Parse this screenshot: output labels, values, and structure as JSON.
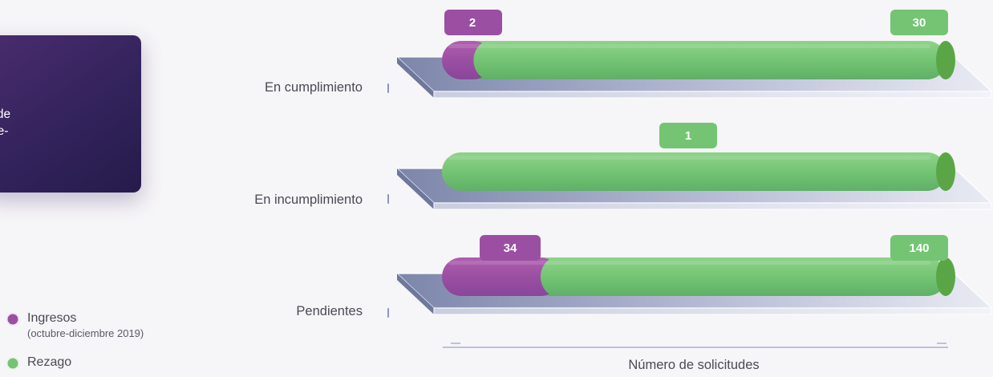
{
  "title": "umentales de\nnes, octubre-",
  "chart_data": {
    "type": "bar",
    "orientation": "horizontal",
    "stacked": true,
    "categories": [
      "En cumplimiento",
      "En incumplimiento",
      "Pendientes"
    ],
    "series": [
      {
        "name": "Ingresos",
        "name_detail": "(octubre-diciembre 2019)",
        "color": "#9b4fa3",
        "values": [
          2,
          0,
          34
        ]
      },
      {
        "name": "Rezago",
        "color": "#74c474",
        "values": [
          30,
          1,
          140
        ]
      }
    ],
    "data_labels": [
      {
        "ingresos": "2",
        "rezago": "30"
      },
      {
        "ingresos": "",
        "rezago": "1"
      },
      {
        "ingresos": "34",
        "rezago": "140"
      }
    ],
    "xlabel": "Número de solicitudes",
    "legend_position": "bottom-left"
  },
  "legend": {
    "items": [
      {
        "label": "Ingresos",
        "sublabel": "(octubre-diciembre 2019)",
        "color": "#9b4fa3"
      },
      {
        "label": "Rezago",
        "sublabel": "",
        "color": "#74c474"
      }
    ]
  }
}
